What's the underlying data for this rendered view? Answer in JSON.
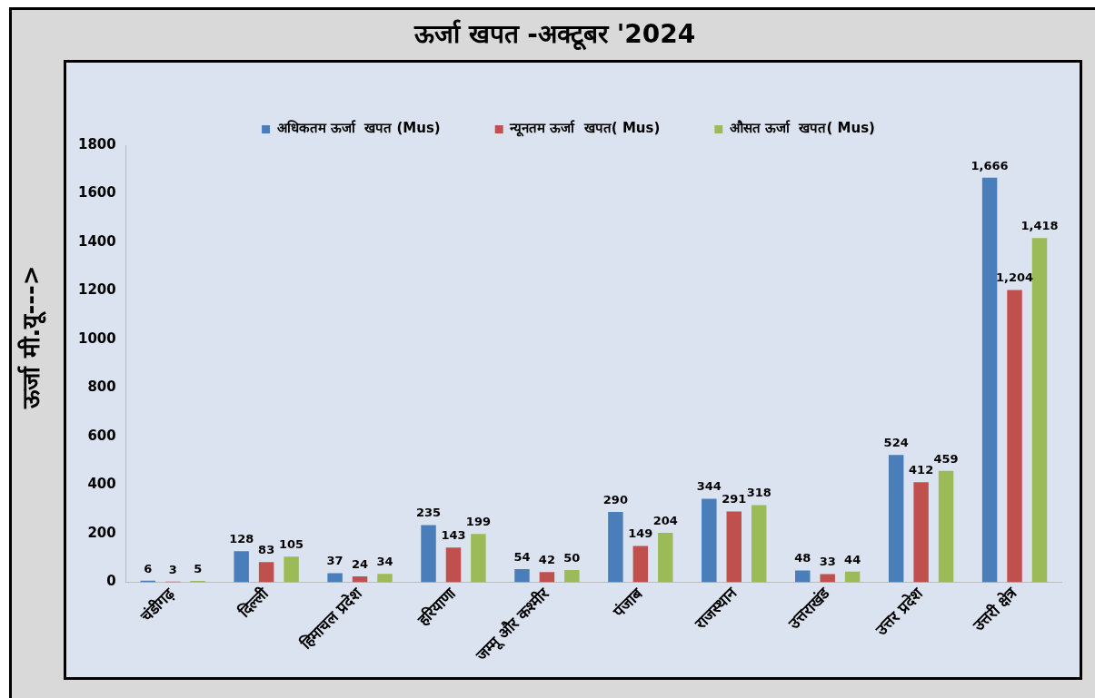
{
  "chart_data": {
    "type": "bar",
    "title": "ऊर्जा  खपत -अक्टूबर '2024",
    "ylabel": "ऊर्जा  मी.यू--->",
    "categories": [
      "चंडीगढ़",
      "दिल्ली",
      "हिमाचल प्रदेश",
      "हरियाणा",
      "जम्मू और कश्मीर",
      "पंजाब",
      "राजस्थान",
      "उत्तराखंड",
      "उत्तर प्रदेश",
      "उत्तरी क्षेत्र"
    ],
    "series": [
      {
        "name": "अधिकतम ऊर्जा  खपत (Mus)",
        "color": "#4a7ebb",
        "values": [
          6,
          128,
          37,
          235,
          54,
          290,
          344,
          48,
          524,
          1666
        ],
        "value_labels": [
          "6",
          "128",
          "37",
          "235",
          "54",
          "290",
          "344",
          "48",
          "524",
          "1,666"
        ]
      },
      {
        "name": "न्यूनतम ऊर्जा  खपत( Mus)",
        "color": "#c0504d",
        "values": [
          3,
          83,
          24,
          143,
          42,
          149,
          291,
          33,
          412,
          1204
        ],
        "value_labels": [
          "3",
          "83",
          "24",
          "143",
          "42",
          "149",
          "291",
          "33",
          "412",
          "1,204"
        ]
      },
      {
        "name": "औसत ऊर्जा  खपत( Mus)",
        "color": "#9bbb59",
        "values": [
          5,
          105,
          34,
          199,
          50,
          204,
          318,
          44,
          459,
          1418
        ],
        "value_labels": [
          "5",
          "105",
          "34",
          "199",
          "50",
          "204",
          "318",
          "44",
          "459",
          "1,418"
        ]
      }
    ],
    "ylim": [
      0,
      1800
    ],
    "yticks": [
      0,
      200,
      400,
      600,
      800,
      1000,
      1200,
      1400,
      1600,
      1800
    ],
    "grid": false,
    "legend": "top"
  }
}
